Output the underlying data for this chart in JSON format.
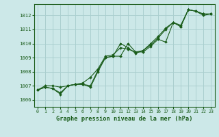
{
  "title": "Graphe pression niveau de la mer (hPa)",
  "background_color": "#cce8e8",
  "grid_color": "#aacfcf",
  "line_color": "#1a5c1a",
  "marker_color": "#1a5c1a",
  "xlim": [
    -0.5,
    23.5
  ],
  "ylim": [
    1005.5,
    1012.8
  ],
  "yticks": [
    1006,
    1007,
    1008,
    1009,
    1010,
    1011,
    1012
  ],
  "xticks": [
    0,
    1,
    2,
    3,
    4,
    5,
    6,
    7,
    8,
    9,
    10,
    11,
    12,
    13,
    14,
    15,
    16,
    17,
    18,
    19,
    20,
    21,
    22,
    23
  ],
  "series": [
    [
      1006.7,
      1006.9,
      1006.8,
      1006.4,
      1007.0,
      1007.1,
      1007.1,
      1006.9,
      1008.0,
      1009.0,
      1009.1,
      1010.0,
      1009.7,
      1009.3,
      1009.5,
      1009.9,
      1010.4,
      1011.0,
      1011.5,
      1011.2,
      1012.4,
      1012.3,
      1012.1,
      1012.1
    ],
    [
      1006.7,
      1007.0,
      1007.0,
      1006.9,
      1007.0,
      1007.1,
      1007.2,
      1007.6,
      1008.2,
      1009.1,
      1009.2,
      1009.7,
      1009.6,
      1009.4,
      1009.5,
      1010.0,
      1010.5,
      1011.1,
      1011.5,
      1011.3,
      1012.4,
      1012.3,
      1012.1,
      1012.1
    ],
    [
      1006.7,
      1006.9,
      1006.8,
      1006.5,
      1007.0,
      1007.1,
      1007.1,
      1007.0,
      1008.1,
      1009.0,
      1009.1,
      1009.1,
      1010.0,
      1009.4,
      1009.4,
      1009.8,
      1010.3,
      1010.1,
      1011.5,
      1011.2,
      1012.4,
      1012.3,
      1012.0,
      1012.1
    ]
  ]
}
